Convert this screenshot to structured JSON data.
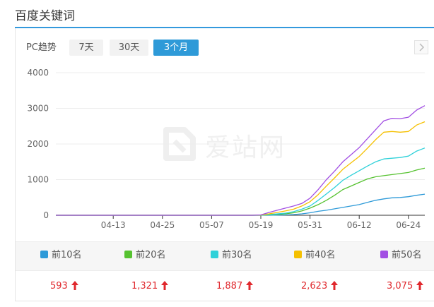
{
  "section": {
    "title": "百度关键词"
  },
  "toolbar": {
    "label": "PC趋势",
    "ranges": [
      "7天",
      "30天",
      "3个月"
    ],
    "active_range": "3个月"
  },
  "watermark": {
    "text": "爱站网"
  },
  "colors": {
    "accent": "#2e9ad8",
    "increase": "#e0282d",
    "series": [
      "#2e9ad8",
      "#56c230",
      "#2fd1d9",
      "#f5c000",
      "#a24fe3"
    ]
  },
  "chart_data": {
    "type": "line",
    "ylim": [
      0,
      4000
    ],
    "yticks": [
      "4000",
      "3000",
      "2000",
      "1000",
      "0"
    ],
    "xticks": [
      "04-13",
      "04-25",
      "05-07",
      "05-19",
      "05-31",
      "06-12",
      "06-24"
    ],
    "x": [
      "03-30",
      "04-03",
      "04-07",
      "04-11",
      "04-15",
      "04-19",
      "04-23",
      "04-27",
      "05-01",
      "05-05",
      "05-09",
      "05-13",
      "05-17",
      "05-19",
      "05-21",
      "05-23",
      "05-25",
      "05-27",
      "05-29",
      "05-31",
      "06-02",
      "06-04",
      "06-06",
      "06-08",
      "06-10",
      "06-12",
      "06-14",
      "06-16",
      "06-18",
      "06-20",
      "06-22",
      "06-24",
      "06-26",
      "06-28"
    ],
    "series": [
      {
        "name": "前10名",
        "color": "#2e9ad8",
        "latest": "593",
        "values": [
          0,
          0,
          0,
          0,
          0,
          0,
          0,
          0,
          0,
          0,
          0,
          0,
          0,
          0,
          0,
          5,
          10,
          20,
          40,
          70,
          110,
          140,
          180,
          220,
          260,
          300,
          360,
          420,
          460,
          490,
          500,
          520,
          560,
          593
        ]
      },
      {
        "name": "前20名",
        "color": "#56c230",
        "latest": "1,321",
        "values": [
          0,
          0,
          0,
          0,
          0,
          0,
          0,
          0,
          0,
          0,
          0,
          0,
          0,
          0,
          10,
          25,
          40,
          70,
          120,
          200,
          300,
          420,
          560,
          720,
          820,
          920,
          1020,
          1080,
          1110,
          1140,
          1170,
          1200,
          1270,
          1321
        ]
      },
      {
        "name": "前30名",
        "color": "#2fd1d9",
        "latest": "1,887",
        "values": [
          0,
          0,
          0,
          0,
          0,
          0,
          0,
          0,
          0,
          0,
          0,
          0,
          0,
          0,
          20,
          40,
          60,
          100,
          170,
          260,
          420,
          600,
          780,
          980,
          1120,
          1250,
          1380,
          1500,
          1580,
          1600,
          1620,
          1660,
          1800,
          1887
        ]
      },
      {
        "name": "前40名",
        "color": "#f5c000",
        "latest": "2,623",
        "values": [
          0,
          0,
          0,
          0,
          0,
          0,
          0,
          0,
          0,
          0,
          0,
          0,
          0,
          5,
          40,
          80,
          120,
          170,
          260,
          380,
          580,
          820,
          1050,
          1290,
          1470,
          1650,
          1880,
          2120,
          2330,
          2350,
          2330,
          2350,
          2530,
          2623
        ]
      },
      {
        "name": "前50名",
        "color": "#a24fe3",
        "latest": "3,075",
        "values": [
          0,
          0,
          0,
          0,
          0,
          0,
          0,
          0,
          0,
          0,
          0,
          0,
          0,
          10,
          80,
          140,
          200,
          260,
          330,
          480,
          720,
          1000,
          1240,
          1500,
          1700,
          1900,
          2150,
          2400,
          2650,
          2720,
          2710,
          2750,
          2950,
          3075
        ]
      }
    ]
  }
}
